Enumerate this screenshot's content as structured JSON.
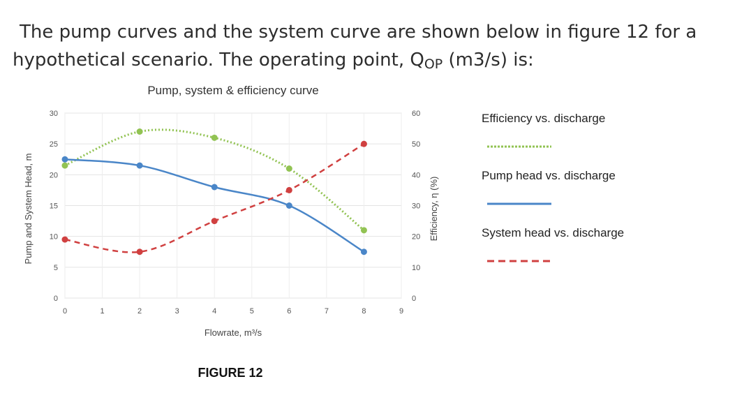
{
  "question": {
    "line1": "The pump curves and the system curve are shown below in figure 12 for a",
    "line2_pre": "hypothetical scenario. The operating point, Q",
    "line2_sub": "OP",
    "line2_post": " (m3/s) is:"
  },
  "figure_caption": "FIGURE 12",
  "chart_data": {
    "type": "line",
    "title": "Pump, system & efficiency curve",
    "xlabel": "Flowrate, m³/s",
    "ylabel": "Pump and System Head, m",
    "y2label": "Efficiency, η (%)",
    "xlim": [
      0,
      9
    ],
    "ylim": [
      0,
      30
    ],
    "y2lim": [
      0,
      60
    ],
    "x_ticks": [
      "0",
      "1",
      "2",
      "3",
      "4",
      "5",
      "6",
      "7",
      "8",
      "9"
    ],
    "y_ticks": [
      "0",
      "5",
      "10",
      "15",
      "20",
      "25",
      "30"
    ],
    "y2_ticks": [
      "0",
      "10",
      "20",
      "30",
      "40",
      "50",
      "60"
    ],
    "grid": true,
    "legend_position": "right",
    "series": [
      {
        "name": "Efficiency vs. discharge",
        "axis": "right",
        "style": "dotted",
        "color": "#92c353",
        "x": [
          0,
          2,
          4,
          6,
          8
        ],
        "y": [
          43,
          54,
          52,
          42,
          22
        ]
      },
      {
        "name": "Pump head vs. discharge",
        "axis": "left",
        "style": "solid",
        "color": "#4a86c8",
        "x": [
          0,
          2,
          4,
          6,
          8
        ],
        "y": [
          22.5,
          21.5,
          18,
          15,
          7.5
        ]
      },
      {
        "name": "System head vs. discharge",
        "axis": "left",
        "style": "dashed",
        "color": "#d04040",
        "x": [
          0,
          2,
          4,
          6,
          8
        ],
        "y": [
          9.5,
          7.5,
          12.5,
          17.5,
          25
        ]
      }
    ]
  }
}
